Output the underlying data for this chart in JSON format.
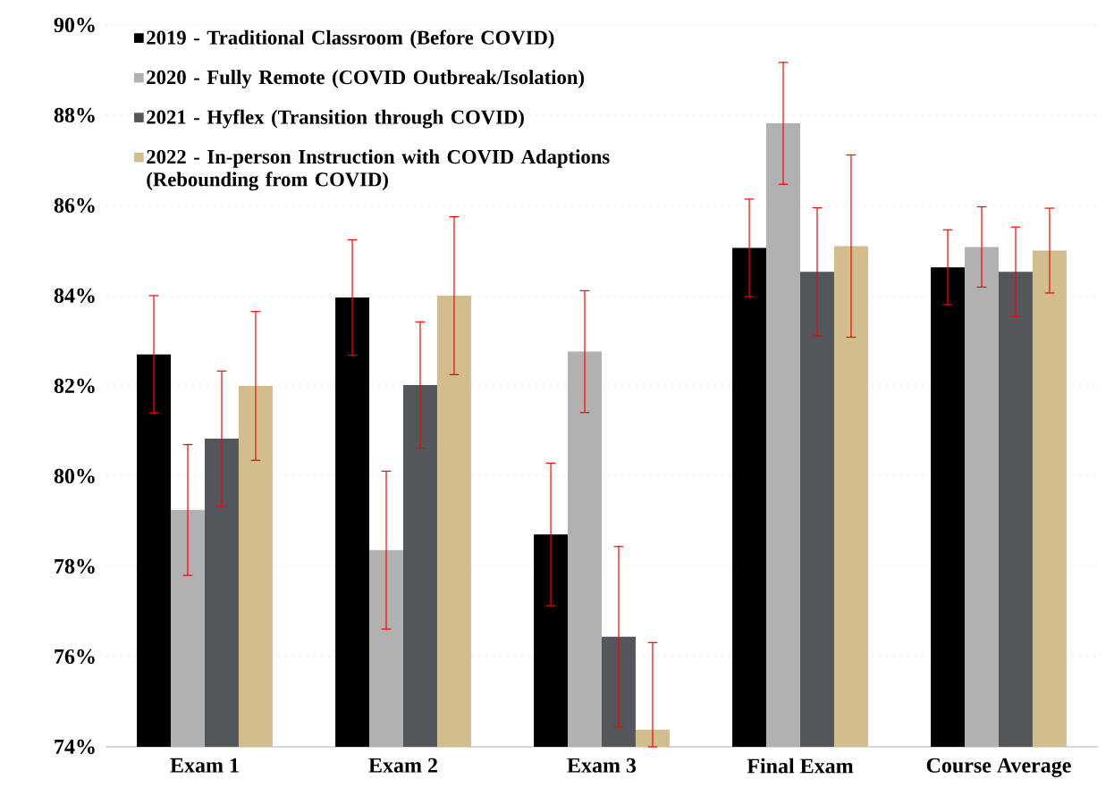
{
  "chart_data": {
    "type": "bar",
    "categories": [
      "Exam 1",
      "Exam 2",
      "Exam 3",
      "Final Exam",
      "Course Average"
    ],
    "series": [
      {
        "name": "2019 - Traditional Classroom (Before COVID)",
        "color": "#000000",
        "values": [
          82.7,
          83.96,
          78.71,
          85.06,
          84.63
        ],
        "errors": [
          1.3,
          1.28,
          1.58,
          1.08,
          0.83
        ]
      },
      {
        "name": "2020 - Fully Remote (COVID Outbreak/Isolation)",
        "color": "#b0b1b0",
        "values": [
          79.25,
          78.36,
          82.76,
          87.82,
          85.08
        ],
        "errors": [
          1.45,
          1.75,
          1.35,
          1.35,
          0.89
        ]
      },
      {
        "name": "2021 - Hyflex (Transition through COVID)",
        "color": "#53565a",
        "values": [
          80.83,
          82.02,
          76.44,
          84.53,
          84.53
        ],
        "errors": [
          1.5,
          1.4,
          2.0,
          1.42,
          0.99
        ]
      },
      {
        "name": "2022 - In-person Instruction with COVID Adaptions (Rebounding from COVID)",
        "color": "#d3bc8d",
        "values": [
          82.0,
          84.0,
          74.38,
          85.1,
          85.0
        ],
        "errors": [
          1.65,
          1.75,
          [
            74,
            76.31
          ],
          2.02,
          0.94
        ]
      }
    ],
    "ylim": [
      74,
      90
    ],
    "yticks": [
      {
        "value": 74,
        "label": "74%"
      },
      {
        "value": 76,
        "label": "76%"
      },
      {
        "value": 78,
        "label": "78%"
      },
      {
        "value": 80,
        "label": "80%"
      },
      {
        "value": 82,
        "label": "82%"
      },
      {
        "value": 84,
        "label": "84%"
      },
      {
        "value": 86,
        "label": "86%"
      },
      {
        "value": 88,
        "label": "88%"
      },
      {
        "value": 90,
        "label": "90%"
      }
    ],
    "grid": "y",
    "legend": "top left"
  }
}
